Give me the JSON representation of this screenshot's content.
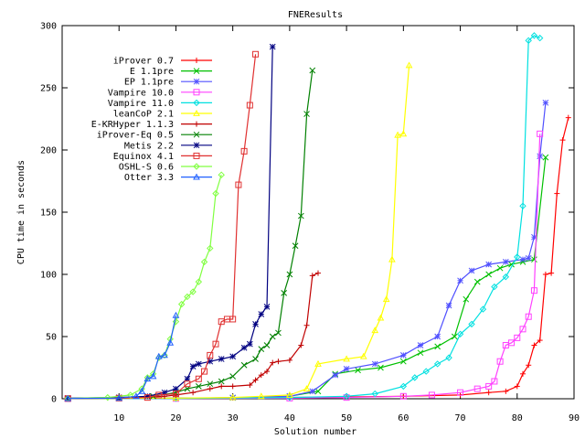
{
  "chart_data": {
    "type": "line",
    "title": "FNEResults",
    "xlabel": "Solution number",
    "ylabel": "CPU time in seconds",
    "xlim": [
      0,
      90
    ],
    "ylim": [
      0,
      300
    ],
    "xticks": [
      10,
      20,
      30,
      40,
      50,
      60,
      70,
      80,
      90
    ],
    "yticks": [
      0,
      50,
      100,
      150,
      200,
      250,
      300
    ],
    "grid": false,
    "legend_position": "top-left",
    "series": [
      {
        "name": "iProver 0.7",
        "color": "#ff0000",
        "marker": "plus",
        "x": [
          1,
          10,
          20,
          30,
          40,
          50,
          60,
          70,
          75,
          78,
          80,
          81,
          82,
          83,
          84,
          85,
          86,
          87,
          88,
          89
        ],
        "y": [
          0.3,
          0.4,
          0.5,
          0.7,
          1,
          1.5,
          2,
          3,
          5,
          6,
          10,
          20,
          27,
          43,
          47,
          100,
          101,
          165,
          208,
          226
        ]
      },
      {
        "name": "E 1.1pre",
        "color": "#00c000",
        "marker": "x",
        "x": [
          1,
          20,
          30,
          40,
          45,
          48,
          52,
          56,
          60,
          63,
          66,
          69,
          71,
          73,
          75,
          77,
          79,
          81,
          83,
          85
        ],
        "y": [
          0.2,
          0.4,
          0.8,
          2,
          6,
          20,
          23,
          25,
          30,
          37,
          42,
          50,
          80,
          94,
          100,
          105,
          108,
          110,
          112,
          194
        ]
      },
      {
        "name": "EP 1.1pre",
        "color": "#5050ff",
        "marker": "star",
        "x": [
          1,
          20,
          30,
          40,
          44,
          48,
          50,
          55,
          60,
          63,
          66,
          68,
          70,
          72,
          75,
          78,
          81,
          82,
          83,
          84,
          85
        ],
        "y": [
          0.2,
          0.4,
          0.8,
          2,
          6,
          19,
          24,
          28,
          35,
          43,
          50,
          75,
          95,
          103,
          108,
          110,
          112,
          113,
          130,
          195,
          238
        ]
      },
      {
        "name": "Vampire 10.0",
        "color": "#ff40ff",
        "marker": "square",
        "x": [
          1,
          20,
          40,
          50,
          60,
          65,
          70,
          73,
          75,
          76,
          77,
          78,
          79,
          80,
          81,
          82,
          83,
          84
        ],
        "y": [
          0.1,
          0.2,
          0.5,
          1,
          2,
          3,
          5,
          8,
          10,
          14,
          30,
          43,
          45,
          49,
          56,
          66,
          87,
          213
        ]
      },
      {
        "name": "Vampire 11.0",
        "color": "#00e0e0",
        "marker": "diamond",
        "x": [
          1,
          20,
          40,
          50,
          55,
          60,
          62,
          64,
          66,
          68,
          70,
          72,
          74,
          76,
          78,
          80,
          81,
          82,
          83,
          84
        ],
        "y": [
          0.1,
          0.2,
          1,
          2,
          4,
          10,
          17,
          22,
          28,
          33,
          52,
          60,
          72,
          90,
          98,
          114,
          155,
          288,
          292,
          290
        ]
      },
      {
        "name": "leanCoP 2.1",
        "color": "#ffff00",
        "marker": "triangle",
        "x": [
          1,
          20,
          30,
          35,
          40,
          43,
          45,
          50,
          53,
          55,
          56,
          57,
          58,
          59,
          60,
          61
        ],
        "y": [
          0.2,
          0.5,
          1,
          2,
          3,
          8,
          28,
          32,
          34,
          55,
          65,
          80,
          112,
          212,
          213,
          268
        ]
      },
      {
        "name": "E-KRHyper 1.1.3",
        "color": "#c00000",
        "marker": "plus",
        "x": [
          1,
          10,
          18,
          20,
          23,
          26,
          28,
          30,
          33,
          34,
          35,
          36,
          37,
          38,
          40,
          42,
          43,
          44,
          45
        ],
        "y": [
          0.2,
          0.4,
          2,
          3,
          5,
          8,
          10,
          10,
          11,
          15,
          19,
          22,
          29,
          30,
          31,
          43,
          59,
          99,
          101
        ]
      },
      {
        "name": "iProver-Eq 0.5",
        "color": "#008000",
        "marker": "x",
        "x": [
          1,
          10,
          16,
          20,
          22,
          24,
          26,
          28,
          30,
          32,
          34,
          35,
          36,
          37,
          38,
          39,
          40,
          41,
          42,
          43,
          44
        ],
        "y": [
          0.3,
          0.5,
          2,
          5,
          8,
          10,
          12,
          14,
          18,
          27,
          32,
          40,
          43,
          50,
          53,
          85,
          100,
          123,
          147,
          229,
          264
        ]
      },
      {
        "name": "Metis 2.2",
        "color": "#000080",
        "marker": "star",
        "x": [
          1,
          10,
          15,
          18,
          20,
          22,
          23,
          24,
          26,
          28,
          30,
          32,
          33,
          34,
          35,
          36,
          37
        ],
        "y": [
          0.5,
          1,
          2,
          5,
          8,
          16,
          26,
          28,
          30,
          32,
          34,
          41,
          44,
          60,
          68,
          74,
          283
        ]
      },
      {
        "name": "Equinox 4.1",
        "color": "#e03030",
        "marker": "square",
        "x": [
          1,
          10,
          15,
          17,
          20,
          22,
          24,
          25,
          26,
          27,
          28,
          29,
          30,
          31,
          32,
          33,
          34
        ],
        "y": [
          0.2,
          0.5,
          1,
          3,
          4,
          12,
          16,
          22,
          35,
          44,
          62,
          64,
          64,
          172,
          199,
          236,
          277
        ]
      },
      {
        "name": "OSHL-S 0.6",
        "color": "#80ff40",
        "marker": "diamond",
        "x": [
          1,
          8,
          12,
          14,
          15,
          16,
          17,
          18,
          19,
          20,
          21,
          22,
          23,
          24,
          25,
          26,
          27,
          28
        ],
        "y": [
          0.3,
          1,
          3,
          8,
          17,
          20,
          33,
          35,
          48,
          62,
          76,
          82,
          86,
          94,
          110,
          121,
          165,
          180
        ]
      },
      {
        "name": "Otter 3.3",
        "color": "#2060ff",
        "marker": "triangle",
        "x": [
          1,
          10,
          13,
          14,
          15,
          16,
          17,
          18,
          19,
          20
        ],
        "y": [
          0.2,
          0.5,
          2,
          6,
          16,
          18,
          34,
          35,
          45,
          67
        ]
      }
    ]
  }
}
